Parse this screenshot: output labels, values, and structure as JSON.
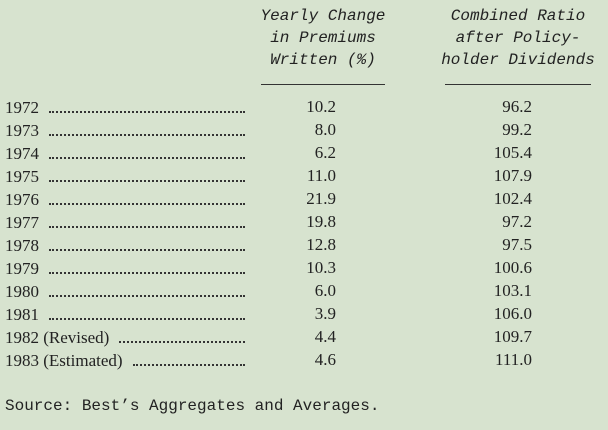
{
  "table": {
    "header": [
      [
        "Yearly Change",
        "in Premiums",
        "Written (%)"
      ],
      [
        "Combined Ratio",
        "after Policy-",
        "holder Dividends"
      ]
    ],
    "rows": [
      [
        "1972",
        "10.2",
        "96.2"
      ],
      [
        "1973",
        "8.0",
        "99.2"
      ],
      [
        "1974",
        "6.2",
        "105.4"
      ],
      [
        "1975",
        "11.0",
        "107.9"
      ],
      [
        "1976",
        "21.9",
        "102.4"
      ],
      [
        "1977",
        "19.8",
        "97.2"
      ],
      [
        "1978",
        "12.8",
        "97.5"
      ],
      [
        "1979",
        "10.3",
        "100.6"
      ],
      [
        "1980",
        "6.0",
        "103.1"
      ],
      [
        "1981",
        "3.9",
        "106.0"
      ],
      [
        "1982 (Revised)",
        "4.4",
        "109.7"
      ],
      [
        "1983 (Estimated)",
        "4.6",
        "111.0"
      ]
    ]
  },
  "source": "Source: Best’s Aggregates and Averages."
}
